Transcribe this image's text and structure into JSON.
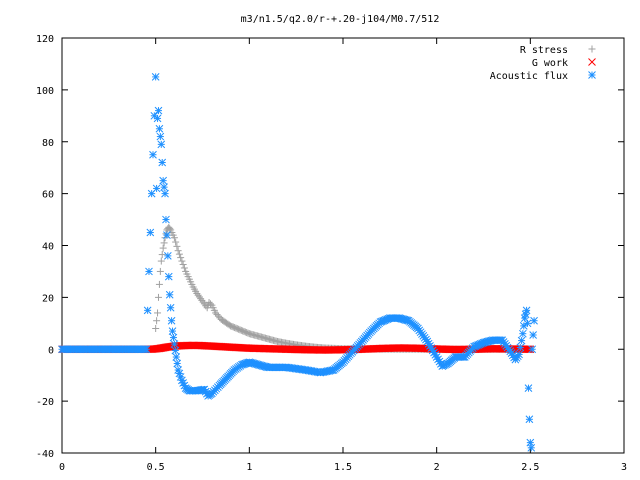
{
  "chart_data": {
    "type": "scatter",
    "title": "m3/n1.5/q2.0/r-+.20-j104/M0.7/512",
    "xlabel": "",
    "ylabel": "",
    "xlim": [
      0,
      3
    ],
    "ylim": [
      -40,
      120
    ],
    "xticks": [
      "0",
      "0.5",
      "1",
      "1.5",
      "2",
      "2.5",
      "3"
    ],
    "yticks": [
      "-40",
      "-20",
      "0",
      "20",
      "40",
      "60",
      "80",
      "100",
      "120"
    ],
    "grid": false,
    "legend_position": "top-right",
    "series": [
      {
        "name": "R stress",
        "marker": "plus",
        "color": "#a0a0a0",
        "points": [
          [
            0.5,
            8
          ],
          [
            0.51,
            14
          ],
          [
            0.515,
            20
          ],
          [
            0.52,
            25
          ],
          [
            0.525,
            30
          ],
          [
            0.53,
            34
          ],
          [
            0.54,
            39
          ],
          [
            0.55,
            43
          ],
          [
            0.56,
            46
          ],
          [
            0.57,
            47
          ],
          [
            0.58,
            46
          ],
          [
            0.6,
            43
          ],
          [
            0.62,
            38
          ],
          [
            0.64,
            34
          ],
          [
            0.66,
            30
          ],
          [
            0.68,
            27
          ],
          [
            0.7,
            24
          ],
          [
            0.72,
            21.5
          ],
          [
            0.74,
            19.5
          ],
          [
            0.76,
            17.5
          ],
          [
            0.775,
            16
          ],
          [
            0.785,
            18
          ],
          [
            0.8,
            17
          ],
          [
            0.82,
            14
          ],
          [
            0.85,
            11.5
          ],
          [
            0.9,
            9
          ],
          [
            0.95,
            7.5
          ],
          [
            1.0,
            6
          ],
          [
            1.05,
            5
          ],
          [
            1.1,
            4
          ],
          [
            1.15,
            3
          ],
          [
            1.2,
            2.3
          ],
          [
            1.25,
            1.7
          ],
          [
            1.3,
            1.2
          ],
          [
            1.35,
            0.8
          ],
          [
            1.4,
            0.5
          ],
          [
            1.5,
            0.2
          ],
          [
            1.6,
            0.1
          ],
          [
            1.8,
            0
          ],
          [
            2.0,
            0
          ],
          [
            2.2,
            0
          ],
          [
            2.4,
            0
          ],
          [
            2.5,
            0
          ]
        ]
      },
      {
        "name": "G work",
        "marker": "cross",
        "color": "#ff0000",
        "points": [
          [
            0.0,
            0
          ],
          [
            0.1,
            0
          ],
          [
            0.2,
            0
          ],
          [
            0.3,
            0
          ],
          [
            0.4,
            0
          ],
          [
            0.48,
            0
          ],
          [
            0.52,
            0.3
          ],
          [
            0.56,
            0.8
          ],
          [
            0.6,
            1.2
          ],
          [
            0.65,
            1.4
          ],
          [
            0.7,
            1.5
          ],
          [
            0.75,
            1.4
          ],
          [
            0.8,
            1.2
          ],
          [
            0.85,
            1.0
          ],
          [
            0.9,
            0.8
          ],
          [
            0.95,
            0.6
          ],
          [
            1.0,
            0.4
          ],
          [
            1.1,
            0.2
          ],
          [
            1.2,
            0
          ],
          [
            1.3,
            -0.2
          ],
          [
            1.4,
            -0.3
          ],
          [
            1.5,
            -0.2
          ],
          [
            1.6,
            0
          ],
          [
            1.7,
            0.3
          ],
          [
            1.8,
            0.5
          ],
          [
            1.9,
            0.4
          ],
          [
            2.0,
            0.1
          ],
          [
            2.1,
            -0.1
          ],
          [
            2.2,
            0
          ],
          [
            2.3,
            0.2
          ],
          [
            2.4,
            0.1
          ],
          [
            2.5,
            0
          ]
        ]
      },
      {
        "name": "Acoustic flux",
        "marker": "star",
        "color": "#1e90ff",
        "points": [
          [
            0.0,
            0
          ],
          [
            0.1,
            0
          ],
          [
            0.2,
            0
          ],
          [
            0.3,
            0
          ],
          [
            0.4,
            0
          ],
          [
            0.45,
            0
          ],
          [
            0.5,
            105
          ],
          [
            0.505,
            62
          ],
          [
            0.51,
            89
          ],
          [
            0.515,
            92
          ],
          [
            0.52,
            85
          ],
          [
            0.53,
            79
          ],
          [
            0.535,
            72
          ],
          [
            0.54,
            65
          ],
          [
            0.55,
            60
          ],
          [
            0.555,
            50
          ],
          [
            0.56,
            44
          ],
          [
            0.565,
            36
          ],
          [
            0.57,
            28
          ],
          [
            0.575,
            21
          ],
          [
            0.58,
            16
          ],
          [
            0.585,
            11
          ],
          [
            0.59,
            7
          ],
          [
            0.6,
            2
          ],
          [
            0.61,
            -3
          ],
          [
            0.62,
            -8
          ],
          [
            0.64,
            -12
          ],
          [
            0.66,
            -15
          ],
          [
            0.68,
            -16
          ],
          [
            0.72,
            -16
          ],
          [
            0.76,
            -15.5
          ],
          [
            0.78,
            -18
          ],
          [
            0.8,
            -17
          ],
          [
            0.84,
            -14
          ],
          [
            0.88,
            -11
          ],
          [
            0.92,
            -8
          ],
          [
            0.96,
            -6
          ],
          [
            1.0,
            -5
          ],
          [
            1.05,
            -6
          ],
          [
            1.1,
            -7
          ],
          [
            1.2,
            -7
          ],
          [
            1.3,
            -8
          ],
          [
            1.38,
            -9
          ],
          [
            1.45,
            -8
          ],
          [
            1.5,
            -5
          ],
          [
            1.55,
            -1
          ],
          [
            1.6,
            3
          ],
          [
            1.65,
            7
          ],
          [
            1.7,
            10.5
          ],
          [
            1.75,
            12
          ],
          [
            1.8,
            12
          ],
          [
            1.85,
            11
          ],
          [
            1.9,
            8
          ],
          [
            1.95,
            3
          ],
          [
            2.0,
            -3
          ],
          [
            2.03,
            -6.5
          ],
          [
            2.06,
            -5.5
          ],
          [
            2.1,
            -3
          ],
          [
            2.15,
            -3
          ],
          [
            2.2,
            1
          ],
          [
            2.25,
            2.5
          ],
          [
            2.3,
            3.5
          ],
          [
            2.35,
            3.5
          ],
          [
            2.4,
            -1.5
          ],
          [
            2.42,
            -4
          ],
          [
            2.44,
            -2
          ],
          [
            2.46,
            6
          ],
          [
            2.47,
            12
          ],
          [
            2.48,
            15
          ],
          [
            2.485,
            10
          ],
          [
            2.49,
            -15
          ],
          [
            2.495,
            -27
          ],
          [
            2.5,
            -36
          ],
          [
            2.505,
            -38
          ],
          [
            2.51,
            0
          ],
          [
            2.52,
            11
          ]
        ]
      }
    ]
  }
}
